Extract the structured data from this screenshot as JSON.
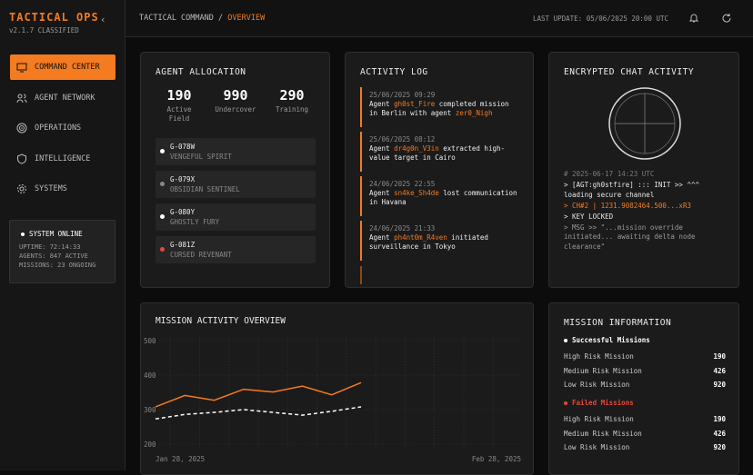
{
  "sidebar": {
    "brand": "TACTICAL OPS",
    "version": "v2.1.7 CLASSIFIED",
    "nav": [
      {
        "label": "COMMAND CENTER",
        "active": true
      },
      {
        "label": "AGENT NETWORK",
        "active": false
      },
      {
        "label": "OPERATIONS",
        "active": false
      },
      {
        "label": "INTELLIGENCE",
        "active": false
      },
      {
        "label": "SYSTEMS",
        "active": false
      }
    ],
    "status": {
      "title": "SYSTEM ONLINE",
      "lines": [
        "UPTIME: 72:14:33",
        "AGENTS: 847 ACTIVE",
        "MISSIONS: 23 ONGOING"
      ]
    }
  },
  "header": {
    "breadcrumb": "TACTICAL COMMAND",
    "separator": "/",
    "current": "OVERVIEW",
    "last_update": "LAST UPDATE: 05/06/2025 20:00 UTC"
  },
  "agent_allocation": {
    "title": "AGENT ALLOCATION",
    "stats": [
      {
        "value": 190,
        "label": "Active Field"
      },
      {
        "value": 990,
        "label": "Undercover"
      },
      {
        "value": 290,
        "label": "Training"
      }
    ],
    "agents": [
      {
        "id": "G-078W",
        "name": "VENGEFUL SPIRIT",
        "status_color": "#ffffff"
      },
      {
        "id": "G-079X",
        "name": "OBSIDIAN SENTINEL",
        "status_color": "#8a8a8a"
      },
      {
        "id": "G-080Y",
        "name": "GHOSTLY FURY",
        "status_color": "#ffffff"
      },
      {
        "id": "G-081Z",
        "name": "CURSED REVENANT",
        "status_color": "#e5483a"
      }
    ]
  },
  "activity_log": {
    "title": "ACTIVITY LOG",
    "entries": [
      {
        "time": "25/06/2025 09:29",
        "parts": [
          {
            "text": "Agent "
          },
          {
            "text": "gh0st_Fire",
            "highlight": true
          },
          {
            "text": " completed mission in Berlin with agent "
          },
          {
            "text": "zer0_Nigh",
            "highlight": true
          }
        ]
      },
      {
        "time": "25/06/2025 08:12",
        "parts": [
          {
            "text": "Agent "
          },
          {
            "text": "dr4g0n_V3in",
            "highlight": true
          },
          {
            "text": " extracted high-value target in Cairo"
          }
        ]
      },
      {
        "time": "24/06/2025 22:55",
        "parts": [
          {
            "text": "Agent "
          },
          {
            "text": "sn4ke_Sh4de",
            "highlight": true
          },
          {
            "text": " lost communication in Havana"
          }
        ]
      },
      {
        "time": "24/06/2025 21:33",
        "parts": [
          {
            "text": "Agent "
          },
          {
            "text": "ph4nt0m_R4ven",
            "highlight": true
          },
          {
            "text": " initiated surveillance in Tokyo"
          }
        ]
      }
    ]
  },
  "chat": {
    "title": "ENCRYPTED CHAT ACTIVITY",
    "lines": [
      {
        "text": "# 2025-06-17 14:23 UTC",
        "color": "#7a7a7a"
      },
      {
        "text": "> [AGT:gh0stfire] ::: INIT >> ^^^ loading secure channel",
        "color": "#e8e8e8"
      },
      {
        "text": "> CH#2 | 1231.9082464.500...xR3",
        "color": "#f47b20"
      },
      {
        "text": "> KEY LOCKED",
        "color": "#e8e8e8"
      },
      {
        "text": "> MSG >> \"...mission override initiated... awaiting delta node clearance\"",
        "color": "#9a9a9a"
      }
    ]
  },
  "chart_data": {
    "type": "line",
    "title": "MISSION ACTIVITY OVERVIEW",
    "x_labels": [
      "Jan 28, 2025",
      "Feb 28, 2025"
    ],
    "categories": [
      null,
      null,
      null,
      null,
      null,
      null,
      null,
      null
    ],
    "series": [
      {
        "color": "#f47b20",
        "dashed": false,
        "values": [
          308,
          341,
          327,
          359,
          351,
          368,
          343,
          378
        ]
      },
      {
        "color": "#ffffff",
        "dashed": true,
        "values": [
          273,
          286,
          292,
          300,
          292,
          284,
          295,
          308
        ]
      }
    ],
    "ylim": [
      200,
      500
    ],
    "yticks": [
      500,
      400,
      300,
      200
    ],
    "grid": true
  },
  "mission_info": {
    "title": "MISSION INFORMATION",
    "groups": [
      {
        "title": "Successful Missions",
        "color": "#ffffff",
        "rows": [
          {
            "label": "High Risk Mission",
            "value": 190
          },
          {
            "label": "Medium Risk Mission",
            "value": 426
          },
          {
            "label": "Low Risk Mission",
            "value": 920
          }
        ]
      },
      {
        "title": "Failed Missions",
        "color": "#e5483a",
        "rows": [
          {
            "label": "High Risk Mission",
            "value": 190
          },
          {
            "label": "Medium Risk Mission",
            "value": 426
          },
          {
            "label": "Low Risk Mission",
            "value": 920
          }
        ]
      }
    ]
  }
}
